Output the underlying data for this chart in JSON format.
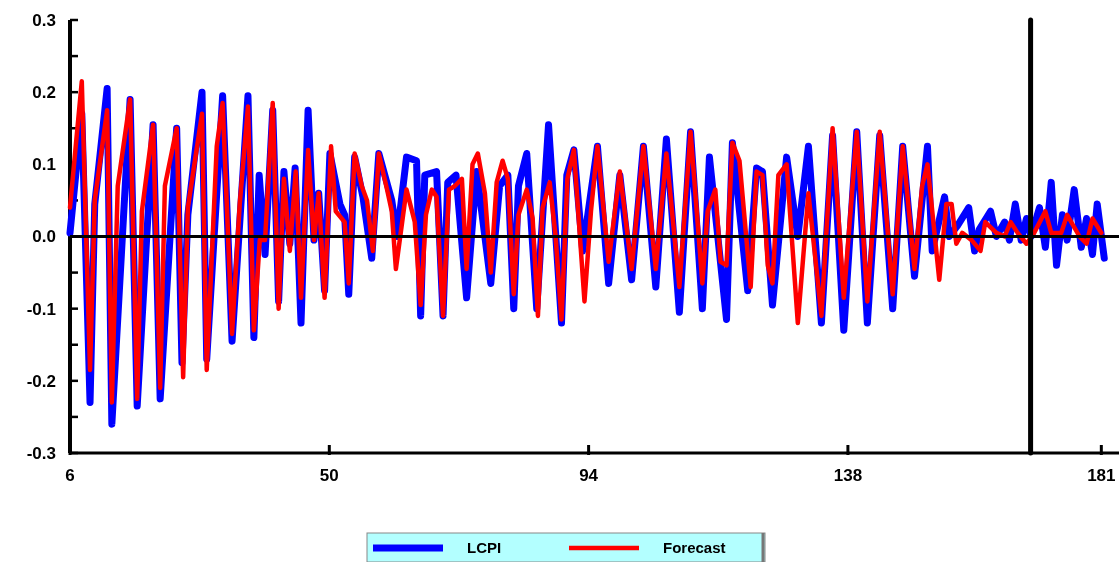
{
  "chart_data": {
    "type": "line",
    "legend": "bottom",
    "marker": "none",
    "line_style": "solid",
    "xlim": [
      6,
      184
    ],
    "xticks": [
      6,
      50,
      94,
      138,
      181
    ],
    "ylim": [
      -0.3,
      0.3
    ],
    "yticks": [
      {
        "value": -0.3,
        "label": "-0.3"
      },
      {
        "value": -0.25,
        "label": null
      },
      {
        "value": -0.2,
        "label": "-0.2"
      },
      {
        "value": -0.15,
        "label": null
      },
      {
        "value": -0.1,
        "label": "-0.1"
      },
      {
        "value": -0.05,
        "label": null
      },
      {
        "value": 0,
        "label": "0.0"
      },
      {
        "value": 0.05,
        "label": null
      },
      {
        "value": 0.1,
        "label": "0.1"
      },
      {
        "value": 0.15,
        "label": null
      },
      {
        "value": 0.2,
        "label": "0.2"
      },
      {
        "value": 0.25,
        "label": null
      },
      {
        "value": 0.3,
        "label": "0.3"
      }
    ],
    "ref_lines": [
      {
        "axis": "y",
        "value": 0,
        "color": "#000000"
      },
      {
        "axis": "x",
        "value": 169,
        "color": "#000000"
      }
    ],
    "series": [
      {
        "name": "LCPI",
        "color": "#0000ff",
        "x": [
          6.0,
          8.0,
          9.4,
          10.2,
          12.3,
          13.1,
          16.2,
          17.4,
          20.1,
          21.3,
          24.1,
          25.0,
          26.0,
          28.4,
          29.2,
          31.9,
          33.5,
          36.2,
          37.2,
          38.1,
          39.1,
          40.4,
          41.4,
          42.3,
          43.3,
          44.2,
          45.2,
          46.4,
          47.4,
          48.2,
          49.2,
          50.1,
          51.8,
          52.6,
          53.3,
          54.3,
          55.7,
          57.2,
          58.4,
          60.6,
          61.5,
          63.1,
          64.8,
          65.5,
          66.2,
          68.2,
          69.3,
          70.1,
          71.5,
          73.3,
          75.0,
          77.4,
          78.9,
          80.3,
          81.3,
          82.1,
          83.5,
          85.2,
          87.2,
          89.4,
          90.3,
          91.5,
          93.0,
          95.5,
          97.4,
          99.3,
          101.3,
          103.3,
          105.4,
          107.2,
          109.4,
          111.3,
          113.3,
          114.5,
          117.4,
          118.4,
          121.0,
          122.5,
          123.5,
          125.2,
          127.6,
          129.5,
          131.3,
          133.5,
          135.4,
          137.3,
          139.5,
          141.3,
          143.4,
          145.6,
          147.3,
          149.3,
          151.5,
          152.3,
          154.4,
          155.2,
          156.6,
          158.5,
          159.5,
          160.3,
          162.2,
          163.2,
          164.6,
          165.4,
          166.4,
          167.4,
          168.3,
          169.1,
          170.5,
          171.5,
          172.5,
          173.4,
          174.4,
          175.2,
          176.4,
          177.6,
          178.5,
          179.5,
          180.3,
          181.5
        ],
        "values": [
          0.005,
          0.17,
          -0.23,
          0.045,
          0.205,
          -0.26,
          0.19,
          -0.235,
          0.155,
          -0.225,
          0.15,
          -0.175,
          0.03,
          0.2,
          -0.17,
          0.195,
          -0.145,
          0.195,
          -0.14,
          0.085,
          -0.025,
          0.175,
          -0.09,
          0.09,
          -0.01,
          0.095,
          -0.12,
          0.175,
          -0.005,
          0.06,
          -0.075,
          0.115,
          0.045,
          0.03,
          -0.08,
          0.11,
          0.055,
          -0.03,
          0.115,
          0.05,
          0.0,
          0.11,
          0.105,
          -0.11,
          0.085,
          0.09,
          -0.11,
          0.075,
          0.085,
          -0.085,
          0.09,
          -0.065,
          0.07,
          0.085,
          -0.1,
          0.07,
          0.115,
          -0.1,
          0.155,
          -0.12,
          0.085,
          0.12,
          -0.02,
          0.125,
          -0.065,
          0.085,
          -0.06,
          0.125,
          -0.07,
          0.135,
          -0.105,
          0.145,
          -0.1,
          0.11,
          -0.115,
          0.13,
          -0.075,
          0.095,
          0.09,
          -0.095,
          0.11,
          0.0,
          0.125,
          -0.12,
          0.14,
          -0.13,
          0.145,
          -0.12,
          0.14,
          -0.1,
          0.125,
          -0.055,
          0.125,
          -0.02,
          0.055,
          0.0,
          0.015,
          0.04,
          -0.02,
          0.01,
          0.035,
          0.0,
          0.02,
          -0.005,
          0.045,
          -0.005,
          0.025,
          0.0,
          0.04,
          -0.015,
          0.075,
          -0.04,
          0.03,
          -0.005,
          0.065,
          -0.015,
          0.025,
          -0.025,
          0.045,
          -0.03
        ]
      },
      {
        "name": "Forecast",
        "color": "#ff0000",
        "x": [
          6.0,
          8.0,
          9.4,
          10.2,
          12.3,
          13.1,
          14.1,
          16.2,
          17.4,
          18.2,
          20.1,
          21.3,
          22.1,
          24.1,
          25.2,
          26.0,
          28.4,
          29.2,
          30.9,
          31.9,
          33.5,
          34.8,
          36.2,
          37.2,
          38.2,
          39.1,
          40.4,
          41.4,
          42.3,
          43.3,
          44.3,
          45.2,
          46.4,
          47.4,
          48.2,
          49.2,
          50.3,
          51.1,
          52.6,
          53.3,
          54.3,
          55.5,
          56.4,
          57.4,
          58.4,
          59.8,
          60.6,
          61.3,
          63.1,
          64.5,
          65.5,
          66.4,
          67.4,
          68.2,
          69.3,
          70.3,
          71.3,
          72.5,
          73.3,
          74.3,
          75.2,
          76.4,
          77.4,
          78.4,
          79.4,
          80.3,
          81.3,
          82.1,
          83.5,
          84.5,
          85.4,
          86.2,
          87.4,
          88.4,
          89.4,
          90.4,
          91.5,
          93.3,
          94.4,
          95.5,
          97.4,
          99.3,
          101.3,
          103.3,
          105.4,
          107.2,
          109.4,
          111.3,
          113.3,
          114.2,
          115.5,
          116.4,
          117.4,
          118.4,
          119.6,
          121.5,
          122.5,
          123.5,
          124.4,
          125.2,
          126.2,
          127.6,
          129.5,
          131.3,
          133.5,
          135.4,
          137.3,
          139.5,
          141.3,
          143.4,
          145.6,
          147.3,
          149.3,
          150.6,
          151.5,
          153.5,
          154.7,
          155.6,
          156.4,
          157.4,
          159.0,
          160.5,
          161.3,
          163.2,
          164.6,
          165.6,
          166.8,
          168.3,
          169.6,
          171.5,
          172.5,
          174.2,
          175.2,
          177.3,
          178.5,
          179.5,
          181.0
        ],
        "values": [
          0.04,
          0.215,
          -0.185,
          0.05,
          0.175,
          -0.23,
          0.07,
          0.19,
          -0.225,
          0.035,
          0.155,
          -0.21,
          0.07,
          0.15,
          -0.195,
          0.04,
          0.17,
          -0.185,
          0.125,
          0.185,
          -0.135,
          0.045,
          0.18,
          -0.13,
          -0.005,
          -0.005,
          0.185,
          -0.1,
          0.08,
          -0.02,
          0.09,
          -0.085,
          0.12,
          -0.005,
          0.06,
          -0.085,
          0.125,
          0.035,
          0.02,
          -0.065,
          0.115,
          0.07,
          0.05,
          -0.02,
          0.115,
          0.065,
          0.035,
          -0.045,
          0.065,
          0.02,
          -0.095,
          0.03,
          0.065,
          0.055,
          -0.11,
          0.065,
          0.07,
          0.08,
          -0.045,
          0.1,
          0.115,
          0.06,
          -0.05,
          0.075,
          0.105,
          0.08,
          -0.08,
          0.03,
          0.065,
          0.025,
          -0.11,
          0.04,
          0.075,
          0.0,
          -0.115,
          0.08,
          0.12,
          -0.09,
          0.035,
          0.125,
          -0.035,
          0.09,
          -0.045,
          0.125,
          -0.045,
          0.115,
          -0.07,
          0.145,
          -0.065,
          0.035,
          0.065,
          -0.035,
          -0.04,
          0.13,
          0.105,
          -0.07,
          0.09,
          0.085,
          -0.04,
          -0.065,
          0.085,
          0.1,
          -0.12,
          0.06,
          -0.11,
          0.15,
          -0.085,
          0.145,
          -0.09,
          0.145,
          -0.08,
          0.125,
          -0.045,
          0.07,
          0.1,
          -0.06,
          0.045,
          0.045,
          -0.01,
          0.005,
          -0.005,
          -0.02,
          0.02,
          0.005,
          0.0,
          0.02,
          0.005,
          -0.01,
          0.005,
          0.035,
          0.005,
          0.005,
          0.03,
          0.0,
          -0.01,
          0.025,
          0.005
        ]
      }
    ]
  }
}
